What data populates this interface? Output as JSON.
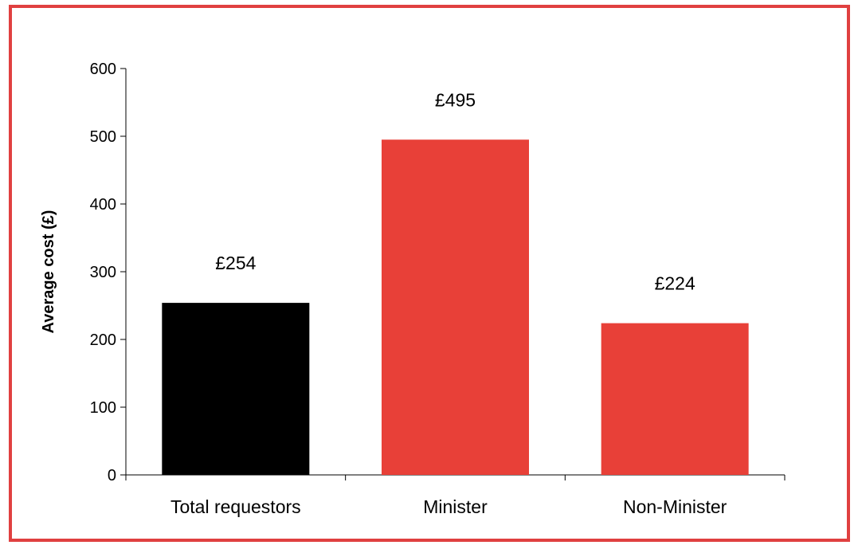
{
  "chart_data": {
    "type": "bar",
    "categories": [
      "Total requestors",
      "Minister",
      "Non-Minister"
    ],
    "values": [
      254,
      495,
      224
    ],
    "data_labels": [
      "£254",
      "£495",
      "£224"
    ],
    "colors": [
      "#000000",
      "#e84038",
      "#e84038"
    ],
    "title": "",
    "xlabel": "",
    "ylabel": "Average cost (£)",
    "ylim": [
      0,
      600
    ],
    "yticks": [
      0,
      100,
      200,
      300,
      400,
      500,
      600
    ],
    "grid": false,
    "legend": "none"
  },
  "frame": {
    "border_color": "#e04040"
  }
}
